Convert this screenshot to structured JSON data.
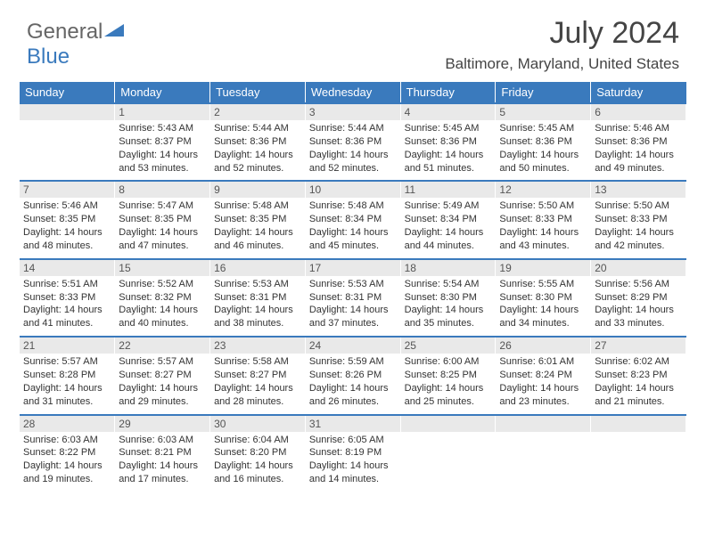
{
  "logo": {
    "text1": "General",
    "text2": "Blue"
  },
  "title": "July 2024",
  "subtitle": "Baltimore, Maryland, United States",
  "style": {
    "header_bg": "#3a7abd",
    "header_fg": "#ffffff",
    "daynum_bg": "#e9e9e9",
    "row_border": "#3a7abd",
    "title_fontsize": 34,
    "subtitle_fontsize": 17,
    "cell_fontsize": 11,
    "logo_triangle_fill": "#3a7abd"
  },
  "days_of_week": [
    "Sunday",
    "Monday",
    "Tuesday",
    "Wednesday",
    "Thursday",
    "Friday",
    "Saturday"
  ],
  "weeks": [
    [
      null,
      {
        "n": "1",
        "sr": "Sunrise: 5:43 AM",
        "ss": "Sunset: 8:37 PM",
        "dl": "Daylight: 14 hours and 53 minutes."
      },
      {
        "n": "2",
        "sr": "Sunrise: 5:44 AM",
        "ss": "Sunset: 8:36 PM",
        "dl": "Daylight: 14 hours and 52 minutes."
      },
      {
        "n": "3",
        "sr": "Sunrise: 5:44 AM",
        "ss": "Sunset: 8:36 PM",
        "dl": "Daylight: 14 hours and 52 minutes."
      },
      {
        "n": "4",
        "sr": "Sunrise: 5:45 AM",
        "ss": "Sunset: 8:36 PM",
        "dl": "Daylight: 14 hours and 51 minutes."
      },
      {
        "n": "5",
        "sr": "Sunrise: 5:45 AM",
        "ss": "Sunset: 8:36 PM",
        "dl": "Daylight: 14 hours and 50 minutes."
      },
      {
        "n": "6",
        "sr": "Sunrise: 5:46 AM",
        "ss": "Sunset: 8:36 PM",
        "dl": "Daylight: 14 hours and 49 minutes."
      }
    ],
    [
      {
        "n": "7",
        "sr": "Sunrise: 5:46 AM",
        "ss": "Sunset: 8:35 PM",
        "dl": "Daylight: 14 hours and 48 minutes."
      },
      {
        "n": "8",
        "sr": "Sunrise: 5:47 AM",
        "ss": "Sunset: 8:35 PM",
        "dl": "Daylight: 14 hours and 47 minutes."
      },
      {
        "n": "9",
        "sr": "Sunrise: 5:48 AM",
        "ss": "Sunset: 8:35 PM",
        "dl": "Daylight: 14 hours and 46 minutes."
      },
      {
        "n": "10",
        "sr": "Sunrise: 5:48 AM",
        "ss": "Sunset: 8:34 PM",
        "dl": "Daylight: 14 hours and 45 minutes."
      },
      {
        "n": "11",
        "sr": "Sunrise: 5:49 AM",
        "ss": "Sunset: 8:34 PM",
        "dl": "Daylight: 14 hours and 44 minutes."
      },
      {
        "n": "12",
        "sr": "Sunrise: 5:50 AM",
        "ss": "Sunset: 8:33 PM",
        "dl": "Daylight: 14 hours and 43 minutes."
      },
      {
        "n": "13",
        "sr": "Sunrise: 5:50 AM",
        "ss": "Sunset: 8:33 PM",
        "dl": "Daylight: 14 hours and 42 minutes."
      }
    ],
    [
      {
        "n": "14",
        "sr": "Sunrise: 5:51 AM",
        "ss": "Sunset: 8:33 PM",
        "dl": "Daylight: 14 hours and 41 minutes."
      },
      {
        "n": "15",
        "sr": "Sunrise: 5:52 AM",
        "ss": "Sunset: 8:32 PM",
        "dl": "Daylight: 14 hours and 40 minutes."
      },
      {
        "n": "16",
        "sr": "Sunrise: 5:53 AM",
        "ss": "Sunset: 8:31 PM",
        "dl": "Daylight: 14 hours and 38 minutes."
      },
      {
        "n": "17",
        "sr": "Sunrise: 5:53 AM",
        "ss": "Sunset: 8:31 PM",
        "dl": "Daylight: 14 hours and 37 minutes."
      },
      {
        "n": "18",
        "sr": "Sunrise: 5:54 AM",
        "ss": "Sunset: 8:30 PM",
        "dl": "Daylight: 14 hours and 35 minutes."
      },
      {
        "n": "19",
        "sr": "Sunrise: 5:55 AM",
        "ss": "Sunset: 8:30 PM",
        "dl": "Daylight: 14 hours and 34 minutes."
      },
      {
        "n": "20",
        "sr": "Sunrise: 5:56 AM",
        "ss": "Sunset: 8:29 PM",
        "dl": "Daylight: 14 hours and 33 minutes."
      }
    ],
    [
      {
        "n": "21",
        "sr": "Sunrise: 5:57 AM",
        "ss": "Sunset: 8:28 PM",
        "dl": "Daylight: 14 hours and 31 minutes."
      },
      {
        "n": "22",
        "sr": "Sunrise: 5:57 AM",
        "ss": "Sunset: 8:27 PM",
        "dl": "Daylight: 14 hours and 29 minutes."
      },
      {
        "n": "23",
        "sr": "Sunrise: 5:58 AM",
        "ss": "Sunset: 8:27 PM",
        "dl": "Daylight: 14 hours and 28 minutes."
      },
      {
        "n": "24",
        "sr": "Sunrise: 5:59 AM",
        "ss": "Sunset: 8:26 PM",
        "dl": "Daylight: 14 hours and 26 minutes."
      },
      {
        "n": "25",
        "sr": "Sunrise: 6:00 AM",
        "ss": "Sunset: 8:25 PM",
        "dl": "Daylight: 14 hours and 25 minutes."
      },
      {
        "n": "26",
        "sr": "Sunrise: 6:01 AM",
        "ss": "Sunset: 8:24 PM",
        "dl": "Daylight: 14 hours and 23 minutes."
      },
      {
        "n": "27",
        "sr": "Sunrise: 6:02 AM",
        "ss": "Sunset: 8:23 PM",
        "dl": "Daylight: 14 hours and 21 minutes."
      }
    ],
    [
      {
        "n": "28",
        "sr": "Sunrise: 6:03 AM",
        "ss": "Sunset: 8:22 PM",
        "dl": "Daylight: 14 hours and 19 minutes."
      },
      {
        "n": "29",
        "sr": "Sunrise: 6:03 AM",
        "ss": "Sunset: 8:21 PM",
        "dl": "Daylight: 14 hours and 17 minutes."
      },
      {
        "n": "30",
        "sr": "Sunrise: 6:04 AM",
        "ss": "Sunset: 8:20 PM",
        "dl": "Daylight: 14 hours and 16 minutes."
      },
      {
        "n": "31",
        "sr": "Sunrise: 6:05 AM",
        "ss": "Sunset: 8:19 PM",
        "dl": "Daylight: 14 hours and 14 minutes."
      },
      null,
      null,
      null
    ]
  ]
}
